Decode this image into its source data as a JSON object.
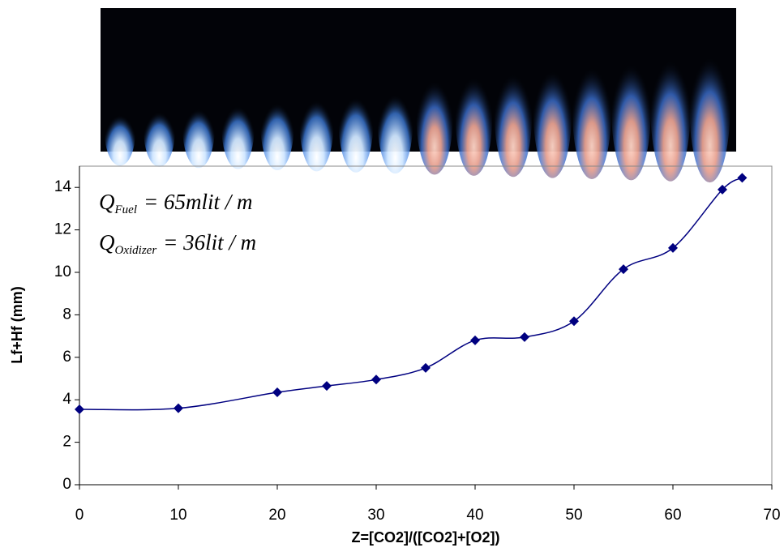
{
  "chart_data": {
    "type": "line",
    "x_label": "Z=[CO2]/([CO2]+[O2])",
    "y_label": "Lf+Hf (mm)",
    "annotations": [
      {
        "symbol": "Q",
        "subscript": "Fuel",
        "text": "= 65mlit / m"
      },
      {
        "symbol": "Q",
        "subscript": "Oxidizer",
        "text": "= 36lit / m"
      }
    ],
    "x": [
      0,
      10,
      20,
      25,
      30,
      35,
      40,
      45,
      50,
      55,
      60,
      65,
      67
    ],
    "series": [
      {
        "color": "#000080",
        "values": [
          3.55,
          3.6,
          4.35,
          4.65,
          4.95,
          5.5,
          6.8,
          6.95,
          7.7,
          10.15,
          11.15,
          13.9,
          14.45
        ]
      }
    ],
    "xlim": [
      0,
      70
    ],
    "xticks": [
      0,
      10,
      20,
      30,
      40,
      50,
      60,
      70
    ],
    "ylim": [
      0,
      15
    ],
    "yticks": [
      0,
      2,
      4,
      6,
      8,
      10,
      12,
      14
    ],
    "smooth": true
  }
}
